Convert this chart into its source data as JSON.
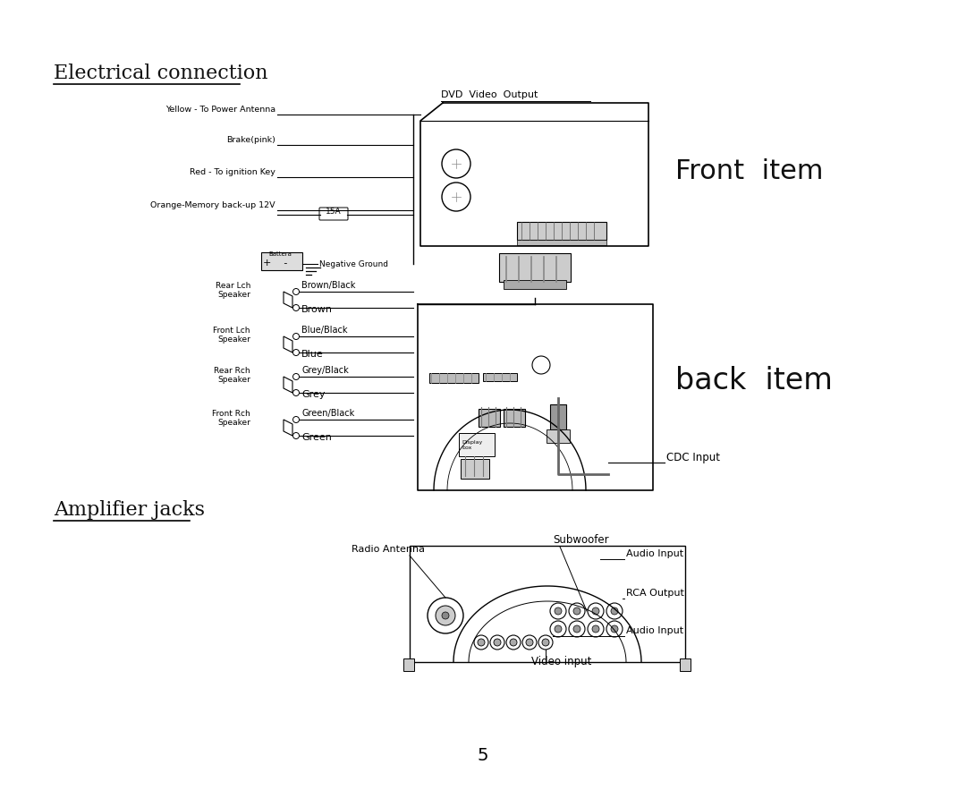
{
  "bg_color": "#ffffff",
  "title1": "Electrical connection",
  "title2": "Amplifier jacks",
  "page_number": "5",
  "wire_labels_left": [
    "Yellow - To Power Antenna",
    "Brake(pink)",
    "Red - To ignition Key",
    "Orange-Memory back-up 12V",
    "Negative Ground"
  ],
  "front_item_label": "Front  item",
  "back_item_label": "back  item",
  "dvd_label": "DVD  Video  Output",
  "cdc_label": "CDC Input",
  "fuse_label": "15A",
  "radio_antenna_label": "Radio Antenna",
  "subwoofer_label": "Subwoofer",
  "audio_input_label1": "Audio Input",
  "rca_output_label": "RCA Output",
  "audio_input_label2": "Audio Input",
  "video_input_label": "Video input",
  "line_color": "#000000",
  "speaker_data": [
    [
      335,
      335,
      "Rear Lch\nSpeaker",
      "Brown/Black",
      "Brown"
    ],
    [
      335,
      385,
      "Front Lch\nSpeaker",
      "Blue/Black",
      "Blue"
    ],
    [
      335,
      430,
      "Rear Rch\nSpeaker",
      "Grey/Black",
      "Grey"
    ],
    [
      335,
      478,
      "Front Rch\nSpeaker",
      "Green/Black",
      "Green"
    ]
  ]
}
